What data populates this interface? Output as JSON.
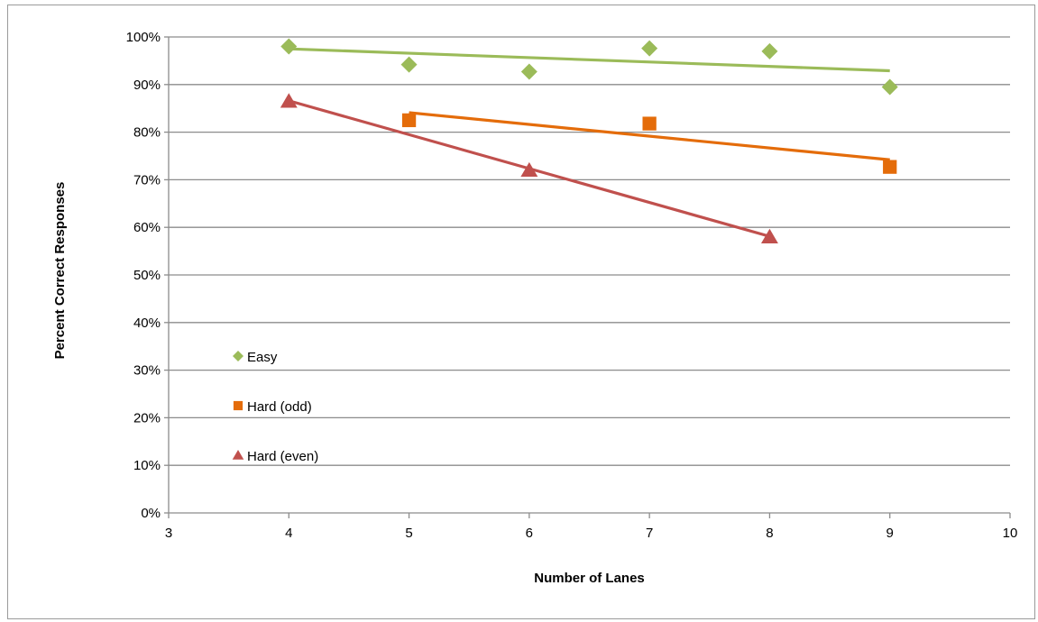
{
  "chart_data": {
    "type": "scatter",
    "xlabel": "Number of Lanes",
    "ylabel": "Percent Correct Responses",
    "xlim": [
      3,
      10
    ],
    "ylim": [
      0,
      100
    ],
    "x_ticks": [
      "3",
      "4",
      "5",
      "6",
      "7",
      "8",
      "9",
      "10"
    ],
    "y_ticks": [
      "0%",
      "10%",
      "20%",
      "30%",
      "40%",
      "50%",
      "60%",
      "70%",
      "80%",
      "90%",
      "100%"
    ],
    "grid": "horizontal",
    "legend_position": "left-inside",
    "series": [
      {
        "name": "Easy",
        "marker": "diamond",
        "color": "#9BBB59",
        "points": [
          [
            4,
            98
          ],
          [
            5,
            94.2
          ],
          [
            6,
            92.7
          ],
          [
            7,
            97.6
          ],
          [
            8,
            97
          ],
          [
            9,
            89.5
          ]
        ],
        "trendline": [
          [
            4,
            97.5
          ],
          [
            9,
            92.9
          ]
        ]
      },
      {
        "name": "Hard (odd)",
        "marker": "square",
        "color": "#E46C0A",
        "points": [
          [
            5,
            82.5
          ],
          [
            7,
            81.8
          ],
          [
            9,
            72.7
          ]
        ],
        "trendline": [
          [
            5,
            84.1
          ],
          [
            9,
            74.2
          ]
        ]
      },
      {
        "name": "Hard (even)",
        "marker": "triangle",
        "color": "#C0504D",
        "points": [
          [
            4,
            86.5
          ],
          [
            6,
            72
          ],
          [
            8,
            58
          ]
        ],
        "trendline": [
          [
            4,
            86.6
          ],
          [
            8,
            58.1
          ]
        ]
      }
    ]
  }
}
